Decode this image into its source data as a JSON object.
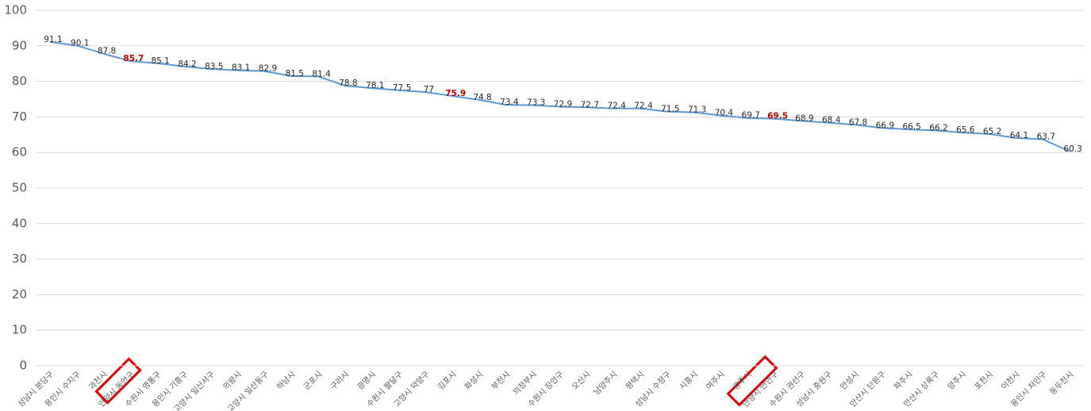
{
  "chart_data": {
    "type": "line",
    "categories": [
      "성남시 분당구",
      "용인시 수지구",
      "과천시",
      "안양시 동안구",
      "수원시 영통구",
      "용인시 기흥구",
      "고양시 일산서구",
      "의왕시",
      "고양시 일산동구",
      "하남시",
      "군포시",
      "구리시",
      "광명시",
      "수원시 팔달구",
      "고양시 덕양구",
      "김포시",
      "화성시",
      "부천시",
      "의정부시",
      "수원시 장안구",
      "오산시",
      "남양주시",
      "평택시",
      "성남시 수정구",
      "시흥시",
      "여주시",
      "광주시",
      "안양시 만안구",
      "수원시 권선구",
      "성남시 중원구",
      "안성시",
      "안산시 단원구",
      "파주시",
      "안산시 상록구",
      "양주시",
      "포천시",
      "이천시",
      "용인시 처인구",
      "동두천시"
    ],
    "values": [
      91.1,
      90.1,
      87.8,
      85.7,
      85.1,
      84.2,
      83.5,
      83.1,
      82.9,
      81.5,
      81.4,
      78.8,
      78.1,
      77.5,
      77,
      75.9,
      74.8,
      73.4,
      73.3,
      72.9,
      72.7,
      72.4,
      72.4,
      71.5,
      71.3,
      70.4,
      69.7,
      69.5,
      68.9,
      68.4,
      67.8,
      66.9,
      66.5,
      66.2,
      65.6,
      65.2,
      64.1,
      63.7,
      60.3
    ],
    "color": "#5b9bd5",
    "value_label_colors": [
      "#262626",
      "#262626",
      "#262626",
      "#c00000",
      "#262626",
      "#262626",
      "#262626",
      "#262626",
      "#262626",
      "#262626",
      "#262626",
      "#262626",
      "#262626",
      "#262626",
      "#262626",
      "#c00000",
      "#262626",
      "#262626",
      "#262626",
      "#262626",
      "#262626",
      "#262626",
      "#262626",
      "#262626",
      "#262626",
      "#262626",
      "#262626",
      "#c00000",
      "#262626",
      "#262626",
      "#262626",
      "#262626",
      "#262626",
      "#262626",
      "#262626",
      "#262626",
      "#262626",
      "#262626",
      "#262626"
    ],
    "ylim": [
      0,
      100
    ],
    "yticks": [
      0,
      10,
      20,
      30,
      40,
      50,
      60,
      70,
      80,
      90,
      100
    ],
    "grid": true
  }
}
